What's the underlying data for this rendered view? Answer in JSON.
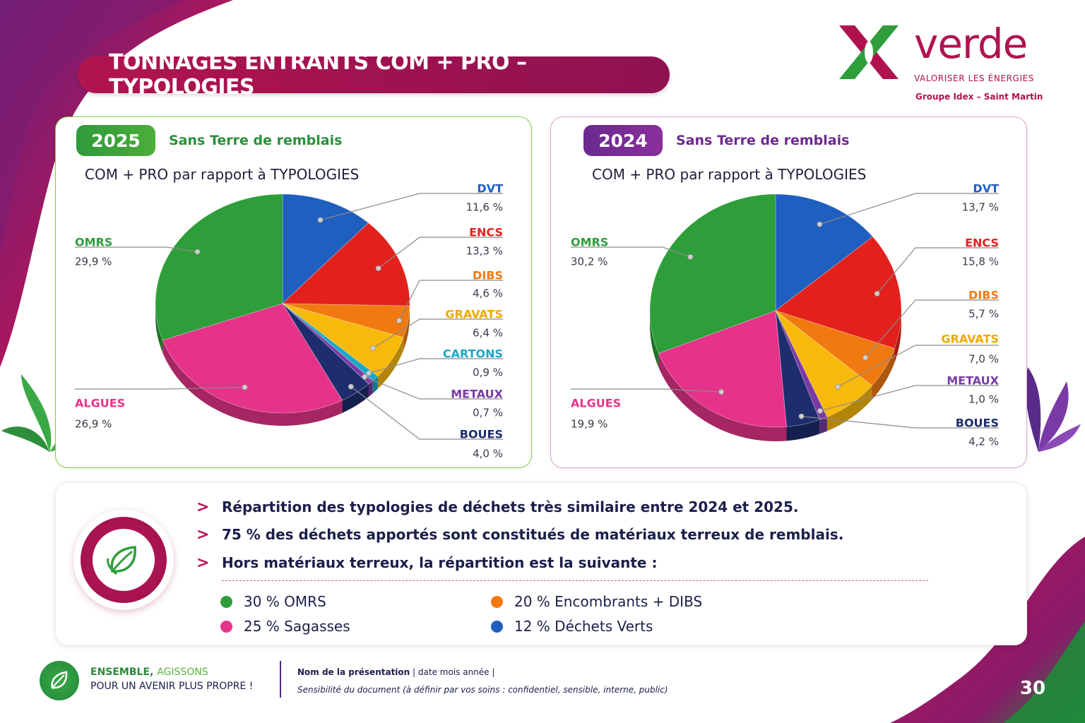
{
  "header": {
    "title": "TONNAGES ENTRANTS COM + PRO – TYPOLOGIES"
  },
  "logo": {
    "word": "verde",
    "tagline": "VALORISER LES ÉNERGIES",
    "group": "Groupe Idex – Saint Martin"
  },
  "panel_2025": {
    "year": "2025",
    "note": "Sans Terre de remblais",
    "subtitle": "COM + PRO par rapport à TYPOLOGIES"
  },
  "panel_2024": {
    "year": "2024",
    "note": "Sans Terre de remblais",
    "subtitle": "COM + PRO par rapport à TYPOLOGIES"
  },
  "chart_data": [
    {
      "type": "pie",
      "year": "2025",
      "slices": [
        {
          "label": "DVT",
          "value": 11.6,
          "display": "11,6 %",
          "color": "#1f5fbf"
        },
        {
          "label": "ENCS",
          "value": 13.3,
          "display": "13,3 %",
          "color": "#e3211c"
        },
        {
          "label": "DIBS",
          "value": 4.6,
          "display": "4,6 %",
          "color": "#f07a10"
        },
        {
          "label": "GRAVATS",
          "value": 6.4,
          "display": "6,4 %",
          "color": "#f9b90a"
        },
        {
          "label": "CARTONS",
          "value": 0.9,
          "display": "0,9 %",
          "color": "#1ba8c8"
        },
        {
          "label": "METAUX",
          "value": 0.7,
          "display": "0,7 %",
          "color": "#7a3aa6"
        },
        {
          "label": "BOUES",
          "value": 4.0,
          "display": "4,0 %",
          "color": "#1e2d6e"
        },
        {
          "label": "ALGUES",
          "value": 26.9,
          "display": "26,9 %",
          "color": "#e6338a"
        },
        {
          "label": "OMRS",
          "value": 29.9,
          "display": "29,9 %",
          "color": "#2e9e3a"
        }
      ]
    },
    {
      "type": "pie",
      "year": "2024",
      "slices": [
        {
          "label": "DVT",
          "value": 13.7,
          "display": "13,7 %",
          "color": "#1f5fbf"
        },
        {
          "label": "ENCS",
          "value": 15.8,
          "display": "15,8 %",
          "color": "#e3211c"
        },
        {
          "label": "DIBS",
          "value": 5.7,
          "display": "5,7 %",
          "color": "#f07a10"
        },
        {
          "label": "GRAVATS",
          "value": 7.0,
          "display": "7,0 %",
          "color": "#f9b90a"
        },
        {
          "label": "METAUX",
          "value": 1.0,
          "display": "1,0 %",
          "color": "#7a3aa6"
        },
        {
          "label": "BOUES",
          "value": 4.2,
          "display": "4,2 %",
          "color": "#1e2d6e"
        },
        {
          "label": "ALGUES",
          "value": 19.9,
          "display": "19,9 %",
          "color": "#e6338a"
        },
        {
          "label": "OMRS",
          "value": 30.2,
          "display": "30,2 %",
          "color": "#2e9e3a"
        }
      ]
    }
  ],
  "summary": {
    "bullets": [
      "Répartition des typologies de déchets très similaire entre 2024 et 2025.",
      "75 % des déchets apportés sont constitués de matériaux terreux de remblais.",
      "Hors matériaux terreux, la répartition est la suivante :"
    ],
    "legend": [
      {
        "text": "30 % OMRS",
        "color": "#2e9e3a"
      },
      {
        "text": "25 % Sagasses",
        "color": "#e6338a"
      },
      {
        "text": "20 % Encombrants + DIBS",
        "color": "#f07a10"
      },
      {
        "text": "12 % Déchets Verts",
        "color": "#1f5fbf"
      }
    ]
  },
  "footer": {
    "slogan_bold": "ENSEMBLE,",
    "slogan_accent": "AGISSONS",
    "slogan_line2": "POUR UN AVENIR PLUS PROPRE !",
    "presentation_name": "Nom de la présentation",
    "date_text": "| date mois année |",
    "sensitivity": "Sensibilité du document (à définir par vos soins : confidentiel, sensible, interne, public)",
    "page_number": "30"
  }
}
